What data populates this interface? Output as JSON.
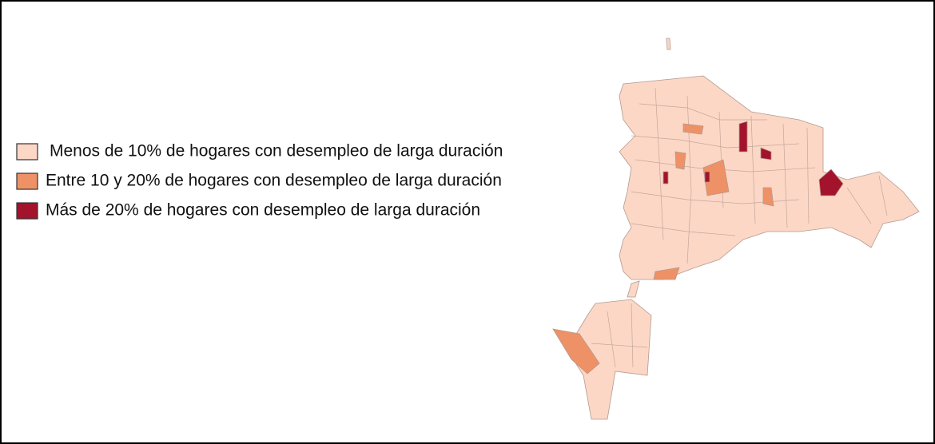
{
  "legend": {
    "items": [
      {
        "label": "Menos de 10% de hogares con desempleo de larga duración",
        "color": "#fcd7c6"
      },
      {
        "label": "Entre 10 y 20% de hogares con desempleo de larga duración",
        "color": "#ef9166"
      },
      {
        "label": "Más de 20% de hogares con desempleo de larga duración",
        "color": "#a3132c"
      }
    ]
  }
}
